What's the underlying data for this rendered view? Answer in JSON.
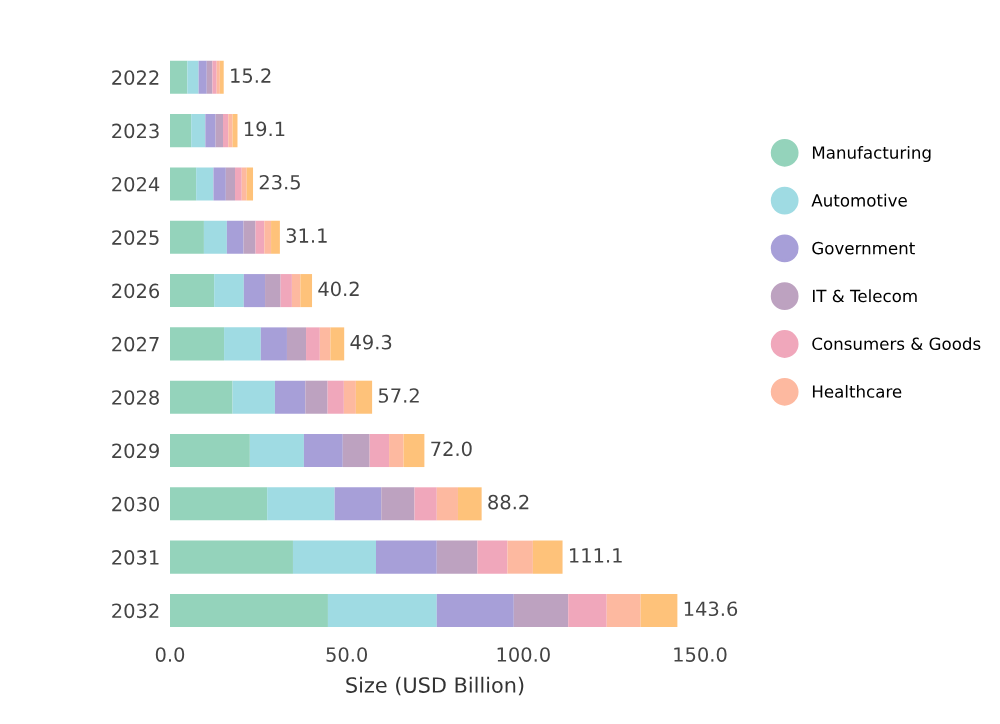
{
  "chart_data": {
    "type": "bar",
    "orientation": "horizontal",
    "stacked": true,
    "categories": [
      "2022",
      "2023",
      "2024",
      "2025",
      "2026",
      "2027",
      "2028",
      "2029",
      "2030",
      "2031",
      "2032"
    ],
    "series": [
      {
        "name": "Manufacturing",
        "color": "#94d3bb",
        "values": [
          4.9,
          6.0,
          7.4,
          9.6,
          12.5,
          15.3,
          17.7,
          22.6,
          27.5,
          34.8,
          44.7
        ]
      },
      {
        "name": "Automotive",
        "color": "#9fdbe3",
        "values": [
          3.2,
          4.0,
          4.9,
          6.5,
          8.4,
          10.4,
          12.0,
          15.3,
          19.1,
          23.5,
          30.8
        ]
      },
      {
        "name": "Government",
        "color": "#a79fd8",
        "values": [
          2.3,
          2.9,
          3.5,
          4.7,
          6.0,
          7.4,
          8.6,
          11.0,
          13.2,
          17.2,
          21.8
        ]
      },
      {
        "name": "IT & Telecom",
        "color": "#bda2c0",
        "values": [
          1.6,
          2.1,
          2.6,
          3.4,
          4.4,
          5.4,
          6.3,
          7.6,
          9.4,
          11.5,
          15.4
        ]
      },
      {
        "name": "Consumers & Goods",
        "color": "#f0a7bb",
        "values": [
          1.2,
          1.5,
          1.9,
          2.5,
          3.2,
          3.9,
          4.6,
          5.5,
          6.3,
          8.5,
          10.9
        ]
      },
      {
        "name": "Healthcare",
        "color": "#fdb9a0",
        "values": [
          0.9,
          1.2,
          1.4,
          1.9,
          2.4,
          3.0,
          3.4,
          4.1,
          6.0,
          7.2,
          9.6
        ]
      },
      {
        "color": "#fec27a",
        "values": [
          1.1,
          1.4,
          1.8,
          2.5,
          3.3,
          3.9,
          4.6,
          5.9,
          6.7,
          8.4,
          10.4
        ]
      }
    ],
    "totals": [
      "15.2",
      "19.1",
      "23.5",
      "31.1",
      "40.2",
      "49.3",
      "57.2",
      "72.0",
      "88.2",
      "111.1",
      "143.6"
    ],
    "xlabel": "Size (USD Billion)",
    "xlim": [
      0,
      150
    ],
    "xticks": [
      {
        "value": 0,
        "label": "0.0"
      },
      {
        "value": 50,
        "label": "50.0"
      },
      {
        "value": 100,
        "label": "100.0"
      },
      {
        "value": 150,
        "label": "150.0"
      }
    ],
    "legend": "right",
    "grid": false
  }
}
